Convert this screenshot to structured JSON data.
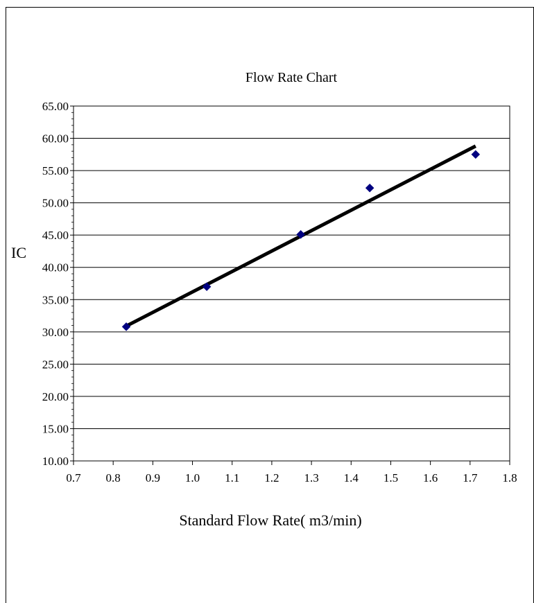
{
  "chart_data": {
    "type": "scatter",
    "title": "Flow Rate Chart",
    "xlabel": "Standard Flow Rate( m3/min)",
    "ylabel": "IC",
    "xlim": [
      0.7,
      1.8
    ],
    "ylim": [
      10,
      65
    ],
    "x_ticks": [
      "0.7",
      "0.8",
      "0.9",
      "1.0",
      "1.1",
      "1.2",
      "1.3",
      "1.4",
      "1.5",
      "1.6",
      "1.7",
      "1.8"
    ],
    "y_ticks": [
      "10.00",
      "15.00",
      "20.00",
      "25.00",
      "30.00",
      "35.00",
      "40.00",
      "45.00",
      "50.00",
      "55.00",
      "60.00",
      "65.00"
    ],
    "grid": "horizontal",
    "series": [
      {
        "marker": "diamond",
        "color": "#000080",
        "x": [
          0.833,
          1.036,
          1.273,
          1.447,
          1.714
        ],
        "y": [
          30.8,
          37.0,
          45.1,
          52.3,
          57.5
        ]
      }
    ],
    "trendline": {
      "type": "linear",
      "color": "#000000",
      "x": [
        0.833,
        1.714
      ],
      "y": [
        30.9,
        58.8
      ]
    }
  }
}
